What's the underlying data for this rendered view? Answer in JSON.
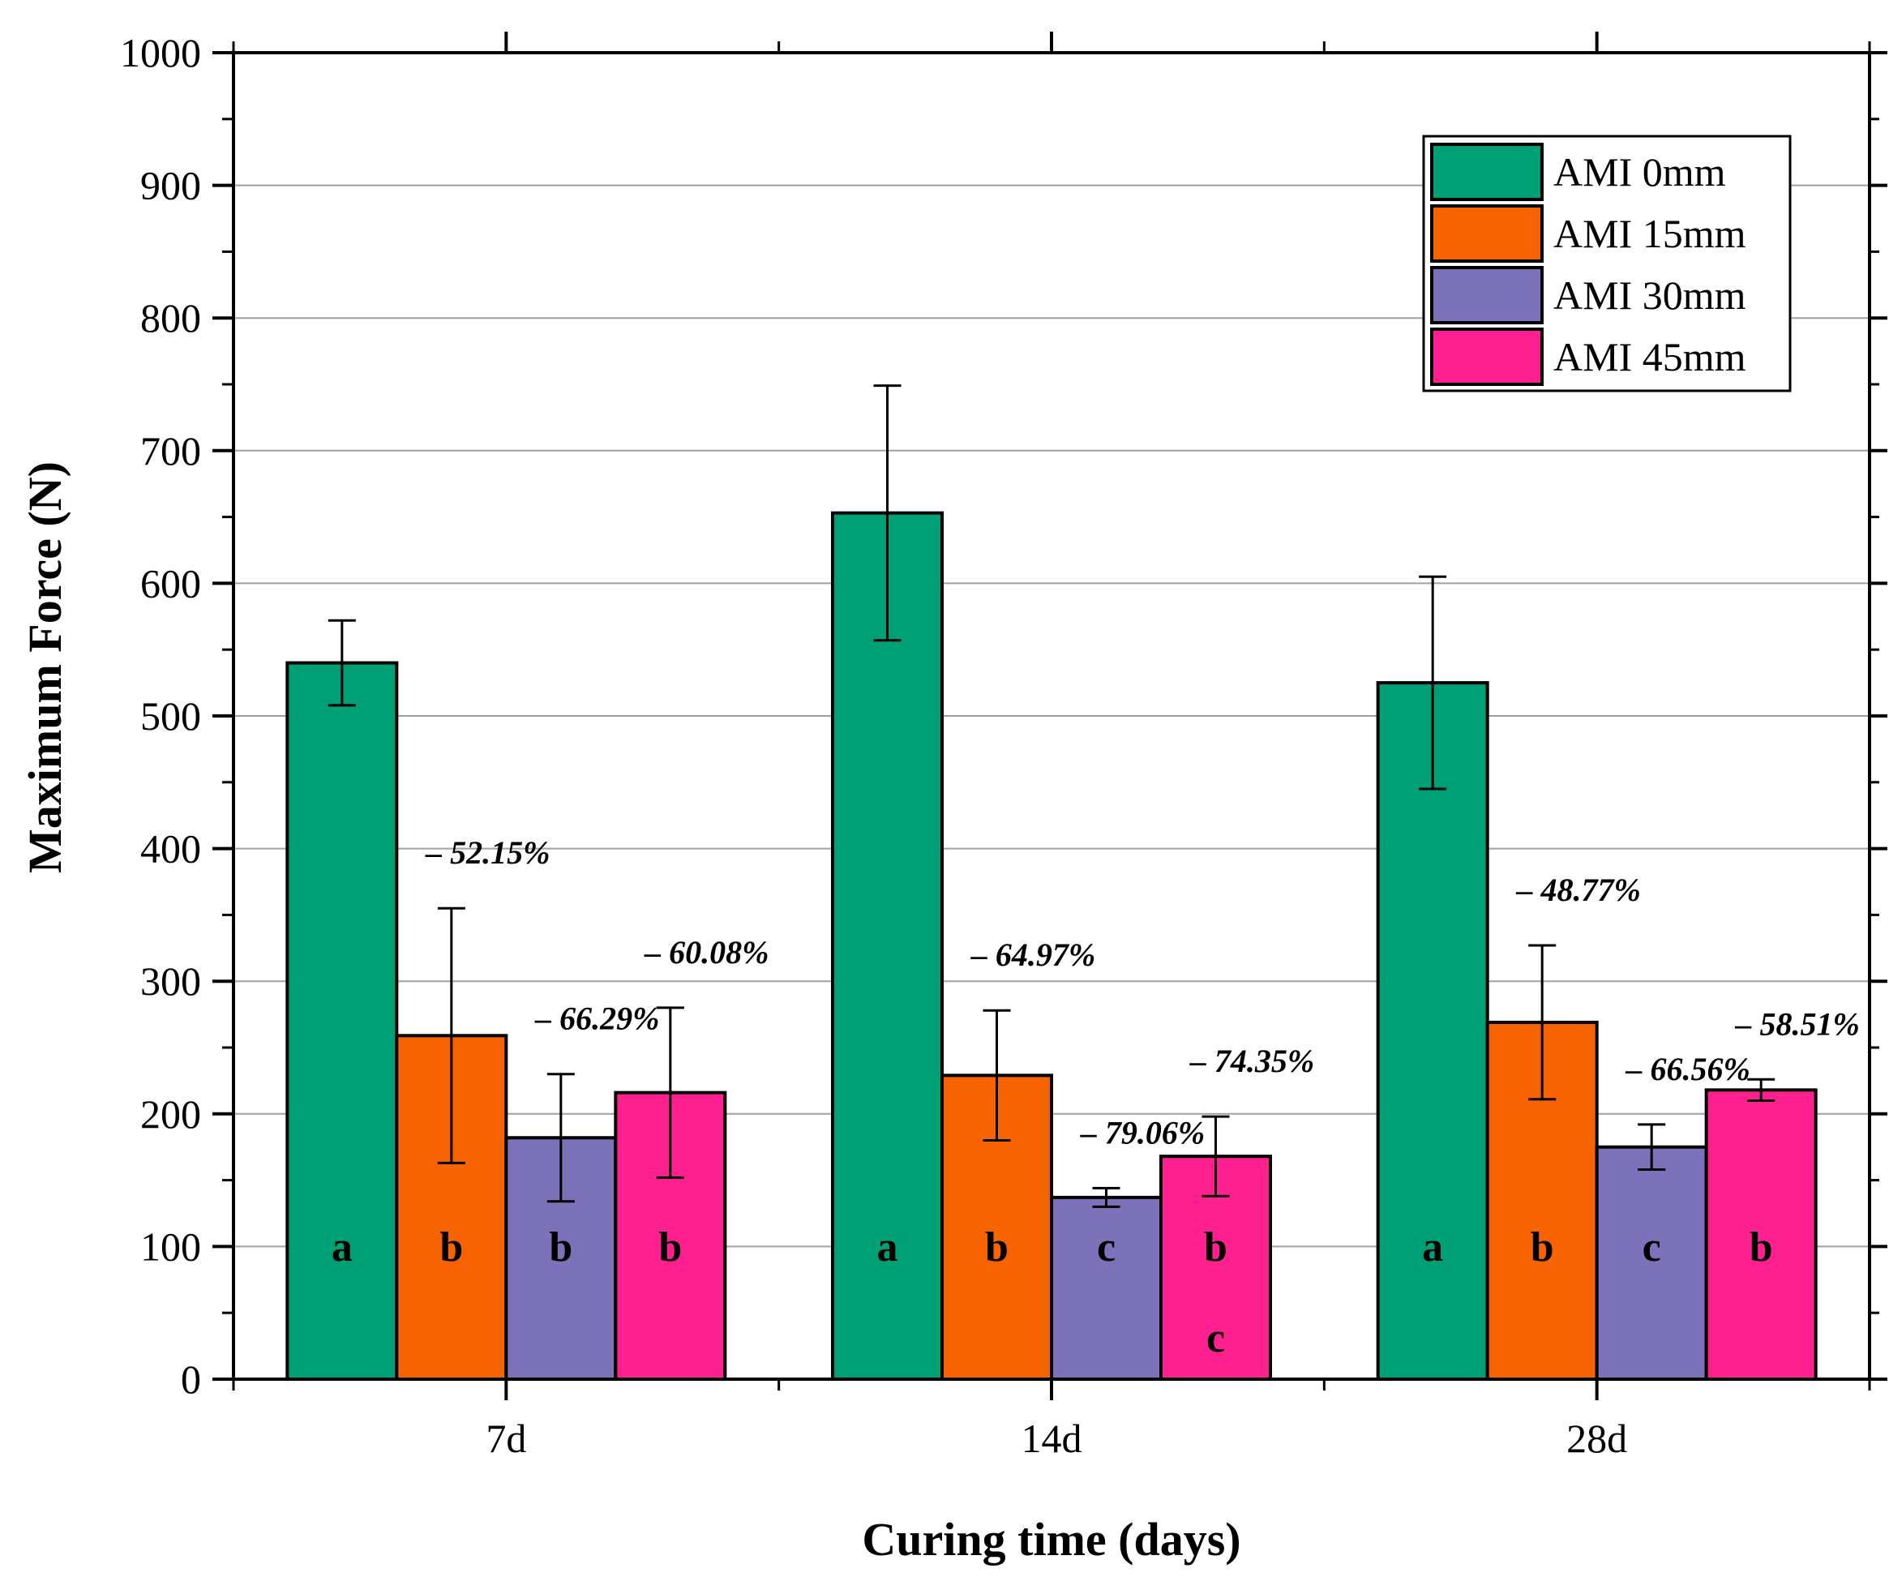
{
  "chart_data": {
    "type": "bar",
    "title": "",
    "xlabel": "Curing time (days)",
    "ylabel": "Maximum Force (N)",
    "ylim": [
      0,
      1000
    ],
    "yticks": [
      0,
      100,
      200,
      300,
      400,
      500,
      600,
      700,
      800,
      900,
      1000
    ],
    "grid": true,
    "legend_position": "top-right",
    "categories": [
      "7d",
      "14d",
      "28d"
    ],
    "series": [
      {
        "name": "AMI 0mm",
        "color": "#00A077",
        "values": [
          540,
          653,
          525
        ],
        "errors": [
          32,
          96,
          80
        ],
        "letters": [
          "a",
          "a",
          "a"
        ],
        "percents": [
          "",
          "",
          ""
        ]
      },
      {
        "name": "AMI 15mm",
        "color": "#F76300",
        "values": [
          259,
          229,
          269
        ],
        "errors": [
          96,
          49,
          58
        ],
        "letters": [
          "b",
          "b",
          "b"
        ],
        "percents": [
          "– 52.15%",
          "– 64.97%",
          "– 48.77%"
        ]
      },
      {
        "name": "AMI 30mm",
        "color": "#7B72B9",
        "values": [
          182,
          137,
          175
        ],
        "errors": [
          48,
          7,
          17
        ],
        "letters": [
          "b",
          "c",
          "c"
        ],
        "percents": [
          "– 66.29%",
          "– 79.06%",
          "– 66.56%"
        ]
      },
      {
        "name": "AMI 45mm",
        "color": "#FF2090",
        "values": [
          216,
          168,
          218
        ],
        "errors": [
          64,
          30,
          8
        ],
        "letters": [
          "b",
          "b\nc",
          "b"
        ],
        "percents": [
          "– 60.08%",
          "– 74.35%",
          "– 58.51%"
        ]
      }
    ]
  }
}
